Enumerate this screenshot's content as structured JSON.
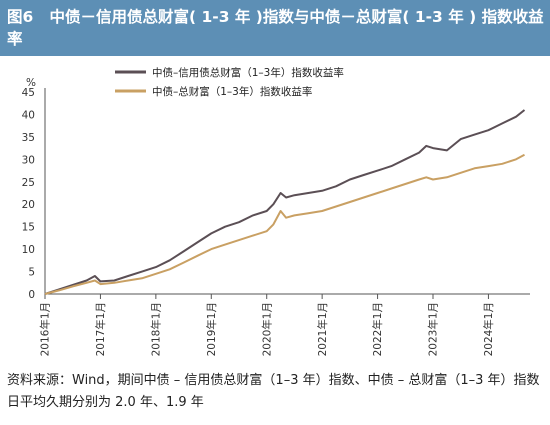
{
  "header": {
    "figure_label": "图6",
    "title": "中债－信用债总财富( 1-3 年 )指数与中债－总财富( 1-3 年 ) 指数收益率"
  },
  "footer": {
    "source": "资料来源：Wind，期间中债 – 信用债总财富（1–3 年）指数、中债 – 总财富（1–3 年）指数日平均久期分别为 2.0 年、1.9 年"
  },
  "colors": {
    "header_bg": "#5d8fb5",
    "series_credit": "#5b4f55",
    "series_total": "#c9a063"
  },
  "chart_data": {
    "type": "line",
    "y_unit": "%",
    "ylim": [
      0,
      45
    ],
    "yticks": [
      0,
      5,
      10,
      15,
      20,
      25,
      30,
      35,
      40,
      45
    ],
    "xlim": [
      "2016-01",
      "2024-08"
    ],
    "xticks": [
      "2016年1月",
      "2017年1月",
      "2018年1月",
      "2019年1月",
      "2020年1月",
      "2021年1月",
      "2022年1月",
      "2023年1月",
      "2024年1月"
    ],
    "legend_position": "top-left",
    "grid": false,
    "x": [
      2016.0,
      2016.25,
      2016.5,
      2016.75,
      2016.9,
      2017.0,
      2017.25,
      2017.5,
      2017.75,
      2018.0,
      2018.25,
      2018.5,
      2018.75,
      2019.0,
      2019.25,
      2019.5,
      2019.75,
      2020.0,
      2020.12,
      2020.25,
      2020.35,
      2020.5,
      2020.75,
      2021.0,
      2021.25,
      2021.5,
      2021.75,
      2022.0,
      2022.25,
      2022.5,
      2022.75,
      2022.88,
      2023.0,
      2023.25,
      2023.5,
      2023.75,
      2024.0,
      2024.25,
      2024.5,
      2024.65
    ],
    "series": [
      {
        "name": "中债–信用债总财富（1–3年）指数收益率",
        "values": [
          0.0,
          1.0,
          2.0,
          3.0,
          4.0,
          2.8,
          3.0,
          4.0,
          5.0,
          6.0,
          7.5,
          9.5,
          11.5,
          13.5,
          15.0,
          16.0,
          17.5,
          18.5,
          20.0,
          22.5,
          21.5,
          22.0,
          22.5,
          23.0,
          24.0,
          25.5,
          26.5,
          27.5,
          28.5,
          30.0,
          31.5,
          33.0,
          32.5,
          32.0,
          34.5,
          35.5,
          36.5,
          38.0,
          39.5,
          41.0
        ]
      },
      {
        "name": "中债–总财富（1–3年）指数收益率",
        "values": [
          0.0,
          0.8,
          1.7,
          2.5,
          3.0,
          2.2,
          2.5,
          3.0,
          3.5,
          4.5,
          5.5,
          7.0,
          8.5,
          10.0,
          11.0,
          12.0,
          13.0,
          14.0,
          15.5,
          18.5,
          17.0,
          17.5,
          18.0,
          18.5,
          19.5,
          20.5,
          21.5,
          22.5,
          23.5,
          24.5,
          25.5,
          26.0,
          25.5,
          26.0,
          27.0,
          28.0,
          28.5,
          29.0,
          30.0,
          31.0
        ]
      }
    ]
  }
}
